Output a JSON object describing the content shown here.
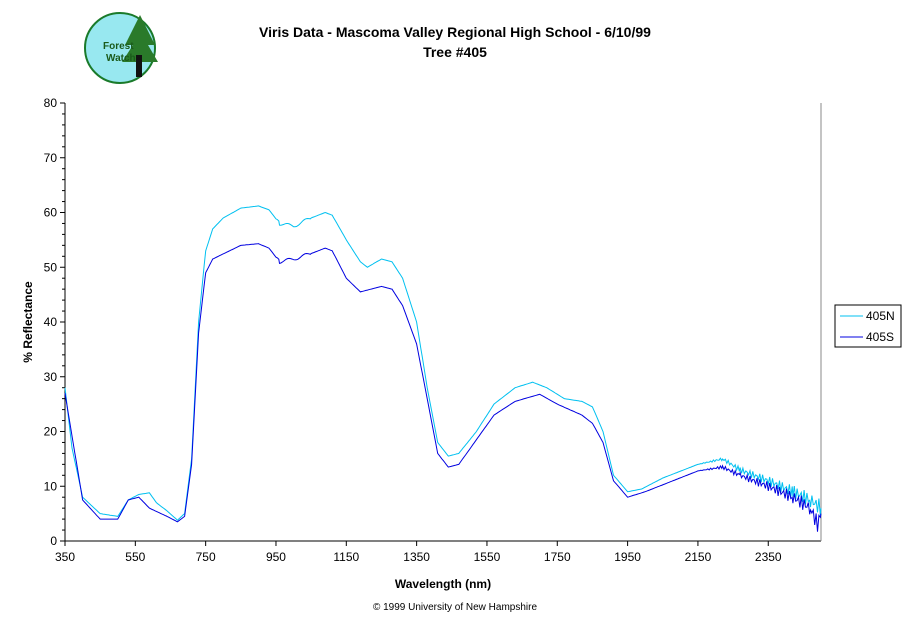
{
  "logo": {
    "text": "Forest Watch"
  },
  "chart_data": {
    "type": "line",
    "title": "Viris Data - Mascoma Valley Regional High School - 6/10/99",
    "subtitle": "Tree #405",
    "xlabel": "Wavelength (nm)",
    "ylabel": "% Reflectance",
    "xlim": [
      350,
      2500
    ],
    "ylim": [
      0,
      80
    ],
    "xticks": [
      "350",
      "550",
      "750",
      "950",
      "1150",
      "1350",
      "1550",
      "1750",
      "1950",
      "2150",
      "2350"
    ],
    "yticks": [
      "0",
      "10",
      "20",
      "30",
      "40",
      "50",
      "60",
      "70",
      "80"
    ],
    "legend": "right",
    "footer": "© 1999 University of New Hampshire",
    "series": [
      {
        "name": "405N",
        "color": "#00c0f0",
        "points": [
          [
            350,
            28
          ],
          [
            370,
            17
          ],
          [
            400,
            8
          ],
          [
            450,
            5
          ],
          [
            500,
            4.5
          ],
          [
            530,
            7.5
          ],
          [
            560,
            8.5
          ],
          [
            590,
            8.8
          ],
          [
            610,
            7
          ],
          [
            640,
            5.5
          ],
          [
            670,
            3.8
          ],
          [
            690,
            5
          ],
          [
            710,
            15
          ],
          [
            730,
            40
          ],
          [
            750,
            53
          ],
          [
            770,
            57
          ],
          [
            800,
            59
          ],
          [
            850,
            60.8
          ],
          [
            900,
            61.2
          ],
          [
            930,
            60.5
          ],
          [
            960,
            58
          ],
          [
            1000,
            57.5
          ],
          [
            1050,
            59
          ],
          [
            1090,
            60
          ],
          [
            1110,
            59.5
          ],
          [
            1150,
            55
          ],
          [
            1190,
            51
          ],
          [
            1210,
            50
          ],
          [
            1250,
            51.5
          ],
          [
            1280,
            51
          ],
          [
            1310,
            48
          ],
          [
            1350,
            40
          ],
          [
            1380,
            28
          ],
          [
            1410,
            18
          ],
          [
            1440,
            15.5
          ],
          [
            1470,
            16
          ],
          [
            1520,
            20
          ],
          [
            1570,
            25
          ],
          [
            1630,
            28
          ],
          [
            1680,
            29
          ],
          [
            1720,
            28
          ],
          [
            1770,
            26
          ],
          [
            1820,
            25.5
          ],
          [
            1850,
            24.5
          ],
          [
            1880,
            20
          ],
          [
            1910,
            12
          ],
          [
            1950,
            9
          ],
          [
            1990,
            9.5
          ],
          [
            2050,
            11.5
          ],
          [
            2150,
            14
          ],
          [
            2220,
            15
          ],
          [
            2270,
            13
          ],
          [
            2350,
            11
          ],
          [
            2420,
            9
          ],
          [
            2470,
            7.5
          ],
          [
            2500,
            6
          ]
        ]
      },
      {
        "name": "405S",
        "color": "#0000e0",
        "points": [
          [
            350,
            27
          ],
          [
            400,
            7.5
          ],
          [
            450,
            4
          ],
          [
            500,
            4
          ],
          [
            530,
            7.5
          ],
          [
            560,
            8
          ],
          [
            590,
            6
          ],
          [
            640,
            4.5
          ],
          [
            670,
            3.5
          ],
          [
            690,
            4.5
          ],
          [
            710,
            14
          ],
          [
            730,
            38
          ],
          [
            750,
            49
          ],
          [
            770,
            51.5
          ],
          [
            850,
            54
          ],
          [
            900,
            54.3
          ],
          [
            930,
            53.5
          ],
          [
            960,
            51
          ],
          [
            1000,
            51.5
          ],
          [
            1050,
            52.5
          ],
          [
            1090,
            53.5
          ],
          [
            1110,
            53
          ],
          [
            1150,
            48
          ],
          [
            1190,
            45.5
          ],
          [
            1250,
            46.5
          ],
          [
            1280,
            46
          ],
          [
            1310,
            43
          ],
          [
            1350,
            36
          ],
          [
            1380,
            26
          ],
          [
            1410,
            16
          ],
          [
            1440,
            13.5
          ],
          [
            1470,
            14
          ],
          [
            1520,
            18.5
          ],
          [
            1570,
            23
          ],
          [
            1630,
            25.5
          ],
          [
            1700,
            26.8
          ],
          [
            1750,
            25
          ],
          [
            1820,
            23
          ],
          [
            1850,
            21.5
          ],
          [
            1880,
            18
          ],
          [
            1910,
            11
          ],
          [
            1950,
            8
          ],
          [
            2000,
            9
          ],
          [
            2150,
            12.8
          ],
          [
            2220,
            13.5
          ],
          [
            2270,
            12
          ],
          [
            2350,
            10
          ],
          [
            2420,
            8
          ],
          [
            2470,
            6
          ],
          [
            2490,
            3
          ],
          [
            2500,
            5
          ]
        ]
      }
    ]
  }
}
